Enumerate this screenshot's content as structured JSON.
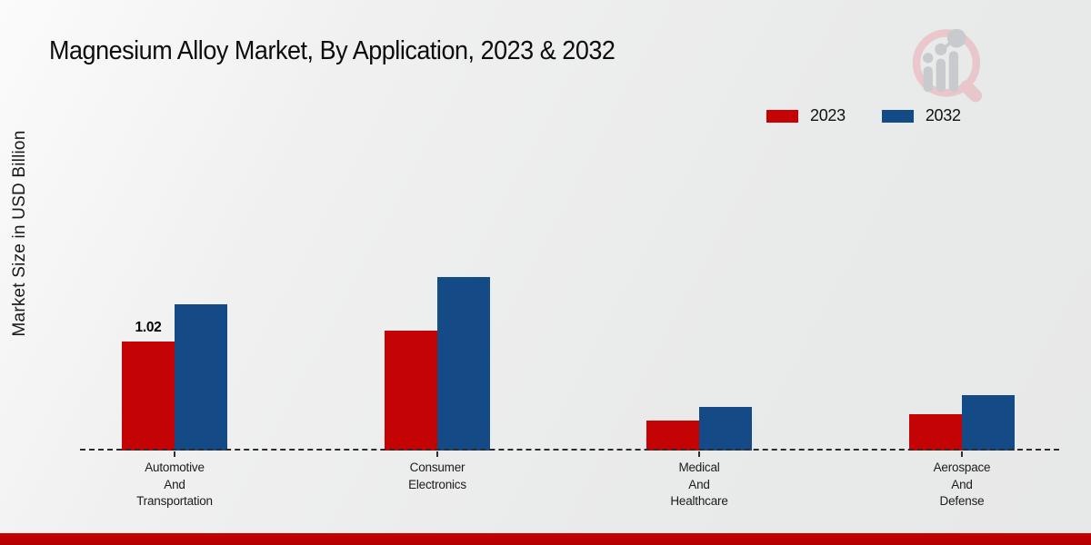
{
  "header": {
    "title": "Magnesium Alloy Market, By Application, 2023 & 2032"
  },
  "axis": {
    "ylabel": "Market Size in USD Billion"
  },
  "colors": {
    "series_2023": "#c40404",
    "series_2032": "#144b87",
    "footer_red": "#c00000",
    "watermark_pink": "#e9c6cb",
    "watermark_gray": "#c7c9cc"
  },
  "legend": {
    "items": [
      {
        "label": "2023",
        "color": "#c40404"
      },
      {
        "label": "2032",
        "color": "#144b87"
      }
    ]
  },
  "chart_data": {
    "type": "bar",
    "title": "Magnesium Alloy Market, By Application, 2023 & 2032",
    "xlabel": "",
    "ylabel": "Market Size in USD Billion",
    "categories": [
      "Automotive\nAnd\nTransportation",
      "Consumer\nElectronics",
      "Medical\nAnd\nHealthcare",
      "Aerospace\nAnd\nDefense"
    ],
    "series": [
      {
        "name": "2023",
        "color": "#c40404",
        "values": [
          1.02,
          1.12,
          0.28,
          0.34
        ]
      },
      {
        "name": "2032",
        "color": "#144b87",
        "values": [
          1.37,
          1.62,
          0.41,
          0.52
        ]
      }
    ],
    "bar_labels": [
      [
        "1.02",
        "",
        "",
        ""
      ],
      [
        "",
        "",
        "",
        ""
      ]
    ],
    "ylim": [
      0,
      1.8
    ],
    "grid": false,
    "legend_position": "top-right",
    "baseline_style": "dashed"
  }
}
